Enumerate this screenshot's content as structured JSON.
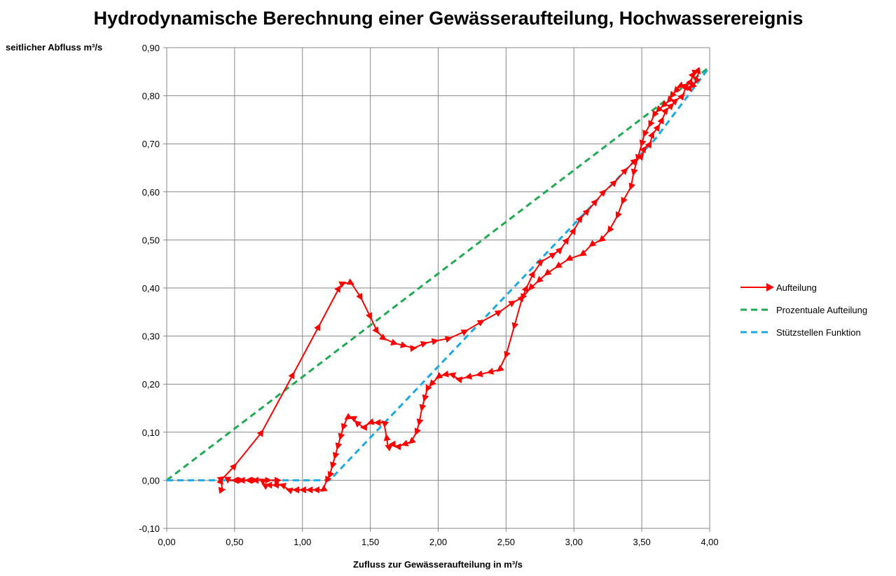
{
  "chart_data": {
    "type": "scatter",
    "title": "Hydrodynamische Berechnung einer Gewässeraufteilung, Hochwasserereignis",
    "xlabel": "Zufluss zur Gewässeraufteilung in m³/s",
    "ylabel": "seitlicher Abfluss m³/s",
    "xlim": [
      0,
      4
    ],
    "ylim": [
      -0.1,
      0.9
    ],
    "x_ticks": [
      "0,00",
      "0,50",
      "1,00",
      "1,50",
      "2,00",
      "2,50",
      "3,00",
      "3,50",
      "4,00"
    ],
    "y_ticks": [
      "-0,10",
      "0,00",
      "0,10",
      "0,20",
      "0,30",
      "0,40",
      "0,50",
      "0,60",
      "0,70",
      "0,80",
      "0,90"
    ],
    "grid": true,
    "legend_position": "right",
    "series": [
      {
        "name": "Aufteilung",
        "color": "#ff0000",
        "style": "solid line with triangle markers",
        "points": [
          [
            0.4,
            0.0
          ],
          [
            0.41,
            -0.02
          ],
          [
            0.4,
            0.0
          ],
          [
            0.5,
            0.03
          ],
          [
            0.7,
            0.1
          ],
          [
            0.93,
            0.22
          ],
          [
            1.12,
            0.32
          ],
          [
            1.27,
            0.4
          ],
          [
            1.3,
            0.41
          ],
          [
            1.36,
            0.41
          ],
          [
            1.43,
            0.38
          ],
          [
            1.5,
            0.34
          ],
          [
            1.55,
            0.31
          ],
          [
            1.6,
            0.295
          ],
          [
            1.68,
            0.285
          ],
          [
            1.75,
            0.28
          ],
          [
            1.82,
            0.275
          ],
          [
            1.9,
            0.285
          ],
          [
            1.98,
            0.29
          ],
          [
            2.08,
            0.295
          ],
          [
            2.2,
            0.31
          ],
          [
            2.32,
            0.33
          ],
          [
            2.45,
            0.35
          ],
          [
            2.55,
            0.37
          ],
          [
            2.62,
            0.38
          ],
          [
            2.65,
            0.4
          ],
          [
            2.7,
            0.43
          ],
          [
            2.76,
            0.455
          ],
          [
            2.85,
            0.47
          ],
          [
            2.9,
            0.48
          ],
          [
            2.95,
            0.5
          ],
          [
            3.0,
            0.52
          ],
          [
            3.05,
            0.545
          ],
          [
            3.1,
            0.56
          ],
          [
            3.16,
            0.58
          ],
          [
            3.22,
            0.6
          ],
          [
            3.3,
            0.62
          ],
          [
            3.38,
            0.645
          ],
          [
            3.45,
            0.665
          ],
          [
            3.5,
            0.675
          ],
          [
            3.52,
            0.69
          ],
          [
            3.56,
            0.7
          ],
          [
            3.58,
            0.72
          ],
          [
            3.62,
            0.735
          ],
          [
            3.65,
            0.75
          ],
          [
            3.68,
            0.77
          ],
          [
            3.72,
            0.78
          ],
          [
            3.75,
            0.79
          ],
          [
            3.8,
            0.8
          ],
          [
            3.83,
            0.82
          ],
          [
            3.86,
            0.83
          ],
          [
            3.88,
            0.845
          ],
          [
            3.9,
            0.85
          ],
          [
            3.92,
            0.85
          ],
          [
            3.9,
            0.83
          ],
          [
            3.87,
            0.82
          ],
          [
            3.84,
            0.815
          ],
          [
            3.8,
            0.82
          ],
          [
            3.78,
            0.82
          ],
          [
            3.75,
            0.81
          ],
          [
            3.72,
            0.8
          ],
          [
            3.7,
            0.79
          ],
          [
            3.66,
            0.78
          ],
          [
            3.62,
            0.77
          ],
          [
            3.59,
            0.76
          ],
          [
            3.56,
            0.74
          ],
          [
            3.52,
            0.72
          ],
          [
            3.5,
            0.7
          ],
          [
            3.47,
            0.67
          ],
          [
            3.44,
            0.64
          ],
          [
            3.42,
            0.61
          ],
          [
            3.36,
            0.58
          ],
          [
            3.32,
            0.55
          ],
          [
            3.26,
            0.52
          ],
          [
            3.2,
            0.5
          ],
          [
            3.13,
            0.49
          ],
          [
            3.06,
            0.47
          ],
          [
            2.96,
            0.46
          ],
          [
            2.88,
            0.445
          ],
          [
            2.8,
            0.43
          ],
          [
            2.74,
            0.415
          ],
          [
            2.68,
            0.4
          ],
          [
            2.62,
            0.38
          ],
          [
            2.56,
            0.32
          ],
          [
            2.5,
            0.26
          ],
          [
            2.45,
            0.23
          ],
          [
            2.38,
            0.225
          ],
          [
            2.3,
            0.22
          ],
          [
            2.22,
            0.215
          ],
          [
            2.15,
            0.21
          ],
          [
            2.1,
            0.22
          ],
          [
            2.05,
            0.22
          ],
          [
            2.0,
            0.215
          ],
          [
            1.95,
            0.2
          ],
          [
            1.92,
            0.19
          ],
          [
            1.9,
            0.17
          ],
          [
            1.88,
            0.15
          ],
          [
            1.86,
            0.12
          ],
          [
            1.84,
            0.1
          ],
          [
            1.8,
            0.08
          ],
          [
            1.75,
            0.075
          ],
          [
            1.7,
            0.07
          ],
          [
            1.66,
            0.075
          ],
          [
            1.63,
            0.07
          ],
          [
            1.62,
            0.09
          ],
          [
            1.6,
            0.12
          ],
          [
            1.55,
            0.12
          ],
          [
            1.5,
            0.12
          ],
          [
            1.45,
            0.11
          ],
          [
            1.4,
            0.12
          ],
          [
            1.37,
            0.13
          ],
          [
            1.33,
            0.13
          ],
          [
            1.3,
            0.11
          ],
          [
            1.28,
            0.09
          ],
          [
            1.26,
            0.07
          ],
          [
            1.24,
            0.05
          ],
          [
            1.22,
            0.03
          ],
          [
            1.2,
            0.01
          ],
          [
            1.18,
            0.0
          ],
          [
            1.15,
            -0.02
          ],
          [
            1.1,
            -0.02
          ],
          [
            1.05,
            -0.02
          ],
          [
            1.0,
            -0.02
          ],
          [
            0.95,
            -0.02
          ],
          [
            0.9,
            -0.02
          ],
          [
            0.85,
            -0.01
          ],
          [
            0.8,
            -0.01
          ],
          [
            0.75,
            -0.01
          ],
          [
            0.72,
            -0.01
          ],
          [
            0.7,
            0.0
          ],
          [
            0.65,
            0.0
          ],
          [
            0.6,
            0.0
          ],
          [
            0.55,
            0.0
          ],
          [
            0.5,
            0.0
          ],
          [
            0.45,
            0.0
          ],
          [
            0.55,
            0.0
          ],
          [
            0.65,
            0.0
          ],
          [
            0.75,
            0.0
          ],
          [
            0.82,
            0.0
          ]
        ]
      },
      {
        "name": "Prozentuale Aufteilung",
        "color": "#1faa52",
        "style": "dashed",
        "points": [
          [
            0.0,
            0.0
          ],
          [
            4.0,
            0.86
          ]
        ]
      },
      {
        "name": "Stützstellen Funktion",
        "color": "#1ba9e1",
        "style": "dashed",
        "points": [
          [
            0.0,
            0.0
          ],
          [
            1.2,
            0.0
          ],
          [
            3.6,
            0.71
          ],
          [
            4.0,
            0.86
          ]
        ]
      }
    ]
  }
}
